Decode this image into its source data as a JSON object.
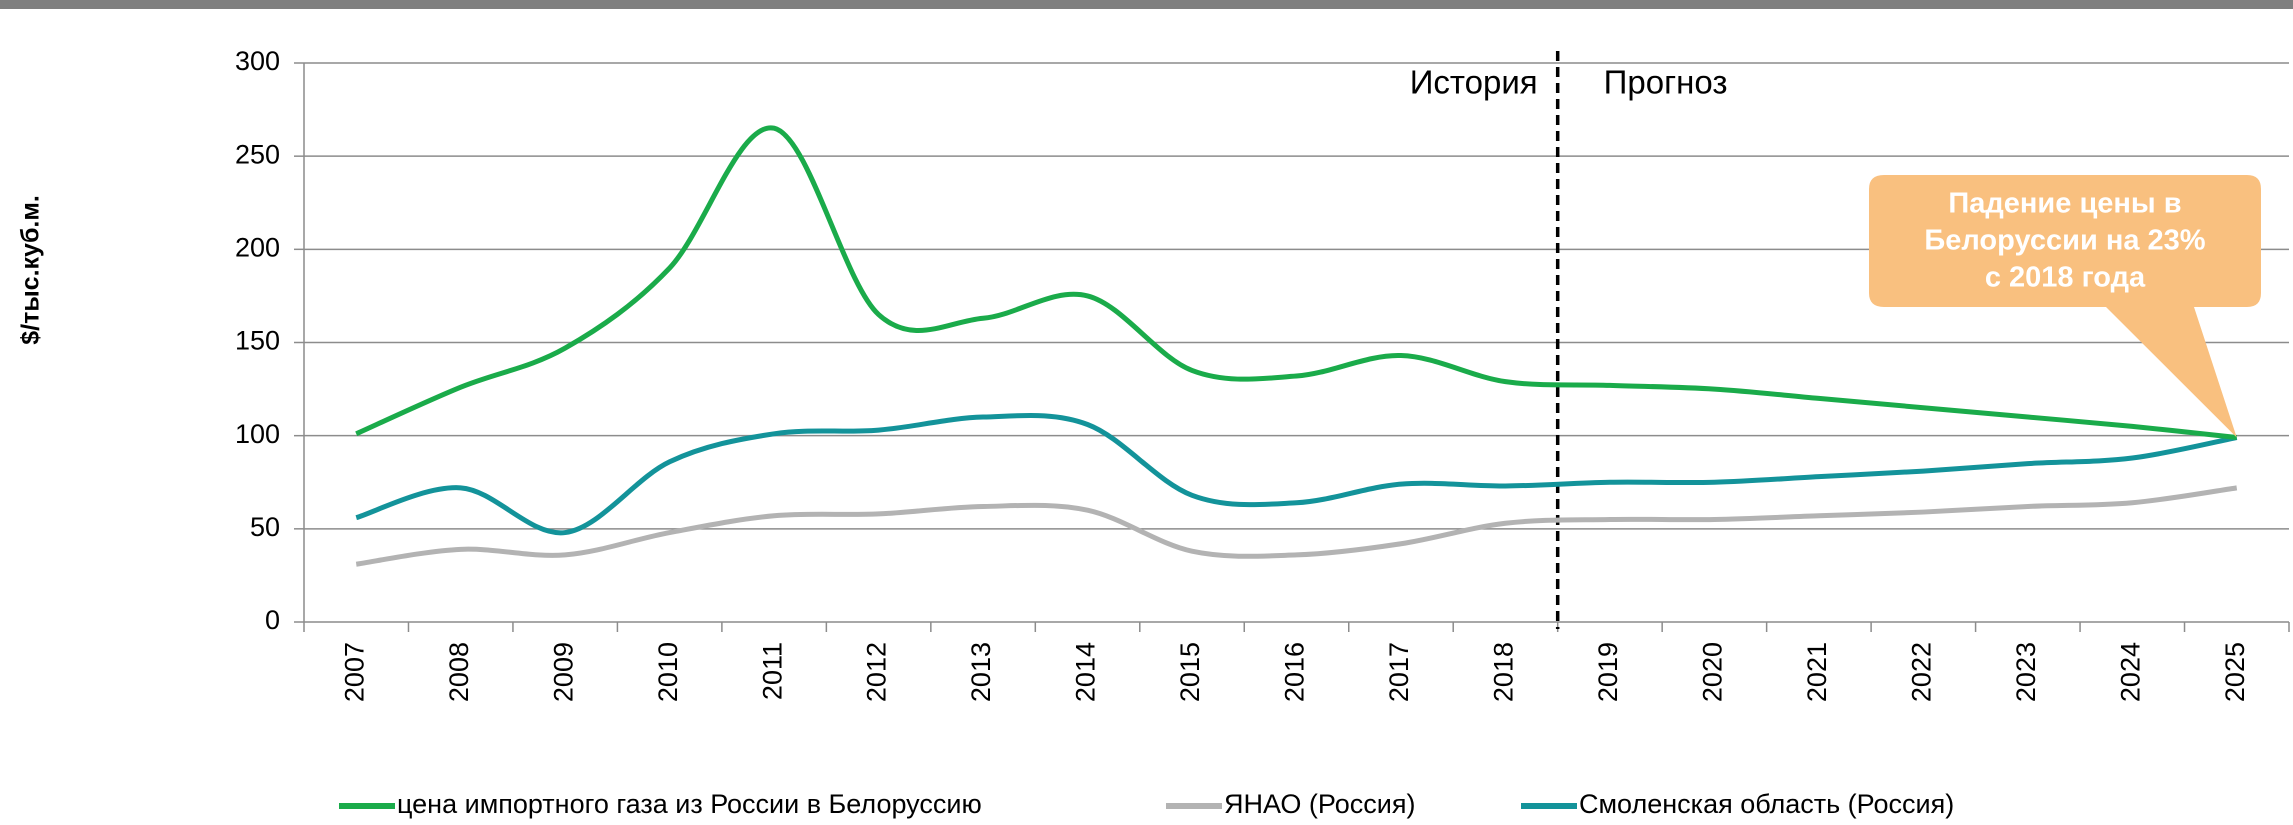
{
  "chart_data": {
    "type": "line",
    "y_label": "$/тыс.куб.м.",
    "categories": [
      "2007",
      "2008",
      "2009",
      "2010",
      "2011",
      "2012",
      "2013",
      "2014",
      "2015",
      "2016",
      "2017",
      "2018",
      "2019",
      "2020",
      "2021",
      "2022",
      "2023",
      "2024",
      "2025"
    ],
    "series": [
      {
        "name": "цена импортного газа из России в Белоруссию",
        "color": "#1aab4a",
        "values": [
          101,
          126,
          147,
          190,
          265,
          165,
          163,
          175,
          135,
          132,
          143,
          129,
          127,
          125,
          120,
          115,
          110,
          105,
          99
        ]
      },
      {
        "name": "ЯНАО (Россия)",
        "color": "#b3b3b3",
        "values": [
          31,
          39,
          36,
          48,
          57,
          58,
          62,
          60,
          38,
          36,
          42,
          53,
          55,
          55,
          57,
          59,
          62,
          64,
          72
        ]
      },
      {
        "name": "Смоленская область (Россия)",
        "color": "#13939a",
        "values": [
          56,
          72,
          48,
          86,
          101,
          103,
          110,
          106,
          68,
          64,
          74,
          73,
          75,
          75,
          78,
          81,
          85,
          88,
          99
        ]
      }
    ],
    "ylim": [
      0,
      300
    ],
    "yticks": [
      0,
      50,
      100,
      150,
      200,
      250,
      300
    ],
    "grid": true,
    "annotations": {
      "history": "История",
      "forecast": "Прогноз",
      "callout": [
        "Падение цены в",
        "Белоруссии на 23%",
        "с 2018 года"
      ]
    }
  }
}
